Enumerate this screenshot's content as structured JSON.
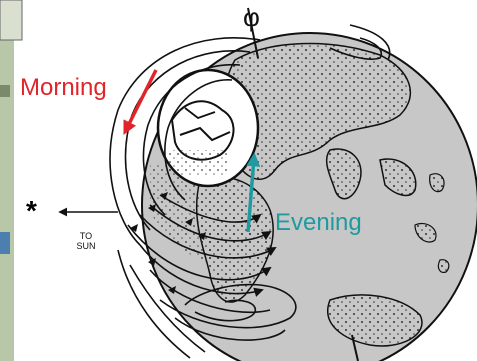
{
  "labels": {
    "morning": "Morning",
    "evening": "Evening",
    "to_sun": "TO\nSUN",
    "star": "*",
    "rotation_axis": "φ"
  },
  "colors": {
    "morning_arrow": "#e0242a",
    "evening_arrow": "#1e9aa0",
    "globe_fill": "#c7c7c7",
    "storm_cell_fill": "#ffffff",
    "background": "#ffffff",
    "ink": "#111111"
  },
  "icons": {
    "sun_marker": "star-icon",
    "direction_arrows": "arrow-left-icon"
  }
}
